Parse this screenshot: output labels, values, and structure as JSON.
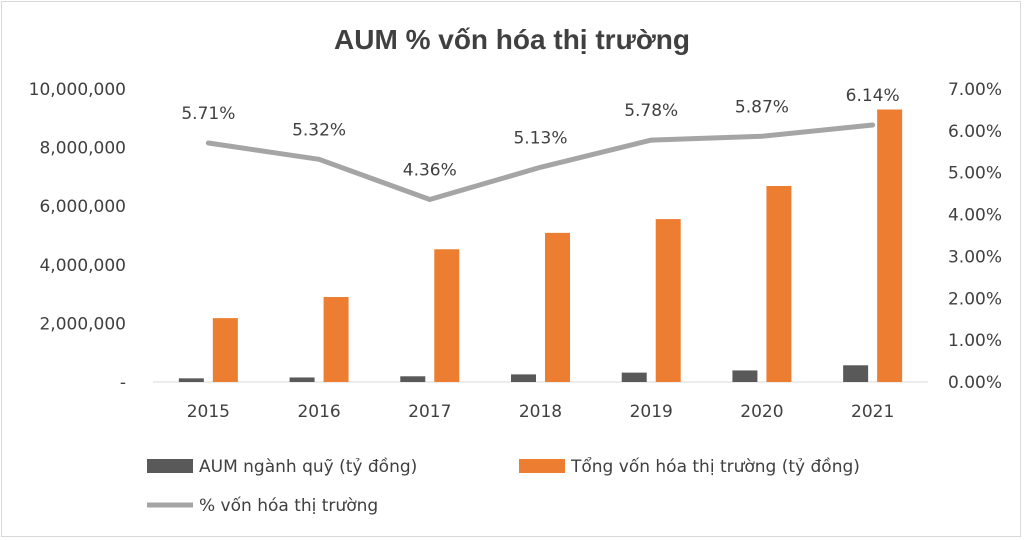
{
  "chart_data": {
    "type": "bar",
    "title": "AUM % vốn hóa thị trường",
    "categories": [
      "2015",
      "2016",
      "2017",
      "2018",
      "2019",
      "2020",
      "2021"
    ],
    "series": [
      {
        "name": "AUM ngành quỹ (tỷ đồng)",
        "type": "bar",
        "axis": "left",
        "color": "#595959",
        "values": [
          125000,
          155000,
          195000,
          260000,
          320000,
          395000,
          570000
        ]
      },
      {
        "name": "Tổng vốn hóa thị trường (tỷ đồng)",
        "type": "bar",
        "axis": "left",
        "color": "#ed7d31",
        "values": [
          2180000,
          2900000,
          4530000,
          5090000,
          5560000,
          6690000,
          9300000
        ]
      },
      {
        "name": "% vốn hóa thị trường",
        "type": "line",
        "axis": "right",
        "color": "#a5a5a5",
        "values": [
          5.71,
          5.32,
          4.36,
          5.13,
          5.78,
          5.87,
          6.14
        ],
        "labels": [
          "5.71%",
          "5.32%",
          "4.36%",
          "5.13%",
          "5.78%",
          "5.87%",
          "6.14%"
        ]
      }
    ],
    "y_left": {
      "range": [
        0,
        10000000
      ],
      "ticks": [
        0,
        2000000,
        4000000,
        6000000,
        8000000,
        10000000
      ],
      "tick_labels": [
        "-",
        "2,000,000",
        "4,000,000",
        "6,000,000",
        "8,000,000",
        "10,000,000"
      ]
    },
    "y_right": {
      "range": [
        0,
        7
      ],
      "ticks": [
        0,
        1,
        2,
        3,
        4,
        5,
        6,
        7
      ],
      "tick_labels": [
        "0.00%",
        "1.00%",
        "2.00%",
        "3.00%",
        "4.00%",
        "5.00%",
        "6.00%",
        "7.00%"
      ]
    },
    "grid": false,
    "legend_position": "bottom"
  }
}
